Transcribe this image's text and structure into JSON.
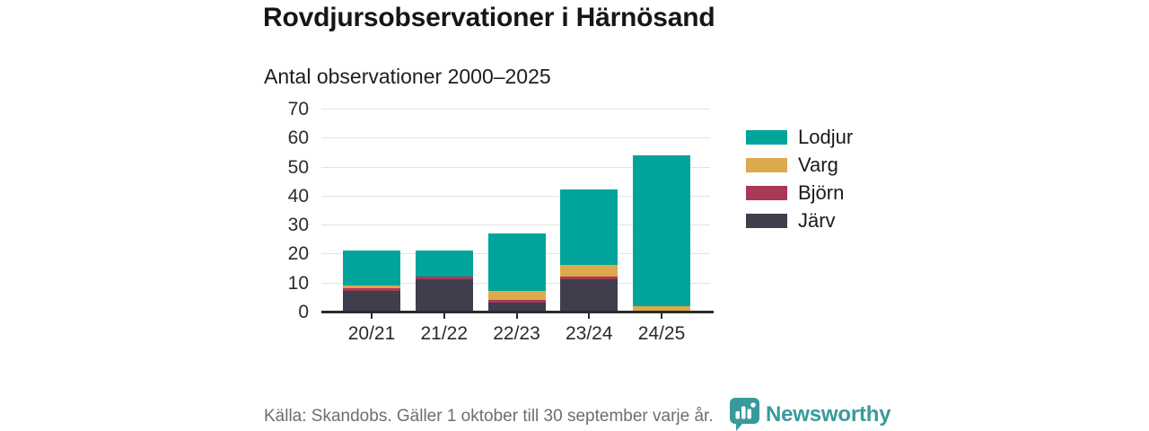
{
  "header": {
    "title": "Rovdjursobservationer i Härnösand",
    "subtitle": "Antal observationer 2000–2025"
  },
  "chart_data": {
    "type": "bar",
    "stacked": true,
    "title": "Rovdjursobservationer i Härnösand",
    "subtitle": "Antal observationer 2000–2025",
    "categories": [
      "20/21",
      "21/22",
      "22/23",
      "23/24",
      "24/25"
    ],
    "series": [
      {
        "name": "Järv",
        "color": "#403e4d",
        "values": [
          7,
          11,
          3,
          11,
          0
        ]
      },
      {
        "name": "Björn",
        "color": "#a83a55",
        "values": [
          1,
          1,
          1,
          1,
          0
        ]
      },
      {
        "name": "Varg",
        "color": "#dda94d",
        "values": [
          1,
          0,
          3,
          4,
          2
        ]
      },
      {
        "name": "Lodjur",
        "color": "#00a49a",
        "values": [
          12,
          9,
          20,
          26,
          52
        ]
      }
    ],
    "totals": [
      21,
      21,
      27,
      42,
      54
    ],
    "ylim": [
      0,
      70
    ],
    "yticks": [
      0,
      10,
      20,
      30,
      40,
      50,
      60,
      70
    ],
    "grid": true,
    "legend_position": "right",
    "legend_order": [
      "Lodjur",
      "Varg",
      "Björn",
      "Järv"
    ]
  },
  "footer": {
    "source": "Källa: Skandobs. Gäller 1 oktober till 30 september varje år.",
    "brand": "Newsworthy"
  },
  "colors": {
    "accent_teal": "#00a49a",
    "gold": "#dda94d",
    "maroon": "#a83a55",
    "dark_slate": "#403e4d",
    "brand_teal": "#399a9b",
    "gridline": "#e3e3e3",
    "axis": "#2b2b2b",
    "source_text": "#6e6e6e"
  }
}
